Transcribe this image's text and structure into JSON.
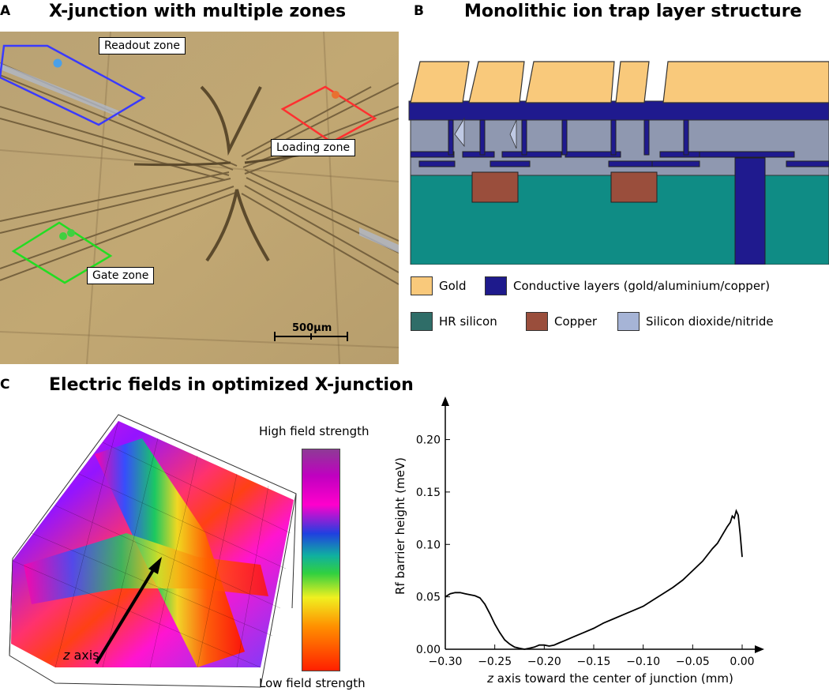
{
  "panelA": {
    "letter": "A",
    "title": "X-junction with multiple zones",
    "zones": {
      "readout": "Readout zone",
      "loading": "Loading zone",
      "gate": "Gate zone"
    },
    "scale_bar": "500µm"
  },
  "panelB": {
    "letter": "B",
    "title": "Monolithic ion trap layer structure",
    "legend": [
      {
        "label": "Gold",
        "color": "#f9c97b"
      },
      {
        "label": "Conductive layers (gold/aluminium/copper)",
        "color": "#1e1a8c"
      },
      {
        "label": "HR silicon",
        "color": "#2f6d68"
      },
      {
        "label": "Copper",
        "color": "#9a4e3c"
      },
      {
        "label": "Silicon dioxide/nitride",
        "color": "#a6b4d6"
      }
    ]
  },
  "panelC": {
    "letter": "C",
    "title": "Electric fields in optimized X-junction",
    "colorbar_high": "High field strength",
    "colorbar_low": "Low field strength",
    "arrow_label_italic": "z",
    "arrow_label_rest": " axis"
  },
  "chart_data": {
    "type": "line",
    "xlabel_italic": "z",
    "xlabel_rest": " axis toward the center of junction (mm)",
    "ylabel": "Rf barrier height (meV)",
    "xlim": [
      -0.3,
      0.0
    ],
    "ylim": [
      0.0,
      0.22
    ],
    "xticks": [
      -0.3,
      -0.25,
      -0.2,
      -0.15,
      -0.1,
      -0.05,
      0.0
    ],
    "xtick_labels": [
      "−0.30",
      "−0.25",
      "−0.20",
      "−0.15",
      "−0.10",
      "−0.05",
      "0.00"
    ],
    "yticks": [
      0.0,
      0.05,
      0.1,
      0.15,
      0.2
    ],
    "ytick_labels": [
      "0.00",
      "0.05",
      "0.10",
      "0.15",
      "0.20"
    ],
    "series": [
      {
        "x": [
          -0.3,
          -0.295,
          -0.29,
          -0.285,
          -0.28,
          -0.275,
          -0.27,
          -0.265,
          -0.26,
          -0.255,
          -0.25,
          -0.245,
          -0.24,
          -0.235,
          -0.23,
          -0.225,
          -0.22,
          -0.215,
          -0.21,
          -0.205,
          -0.2,
          -0.195,
          -0.19,
          -0.185,
          -0.18,
          -0.17,
          -0.16,
          -0.15,
          -0.14,
          -0.13,
          -0.12,
          -0.11,
          -0.1,
          -0.09,
          -0.08,
          -0.07,
          -0.06,
          -0.05,
          -0.04,
          -0.03,
          -0.025,
          -0.02,
          -0.015,
          -0.012,
          -0.01,
          -0.008,
          -0.006,
          -0.004,
          -0.002,
          0.0
        ],
        "values": [
          0.05,
          0.053,
          0.054,
          0.054,
          0.053,
          0.052,
          0.051,
          0.049,
          0.043,
          0.034,
          0.024,
          0.016,
          0.009,
          0.005,
          0.002,
          0.001,
          0.0,
          0.001,
          0.002,
          0.004,
          0.004,
          0.003,
          0.004,
          0.006,
          0.008,
          0.012,
          0.016,
          0.02,
          0.025,
          0.029,
          0.033,
          0.037,
          0.041,
          0.047,
          0.053,
          0.059,
          0.066,
          0.075,
          0.084,
          0.096,
          0.101,
          0.109,
          0.117,
          0.121,
          0.127,
          0.125,
          0.132,
          0.128,
          0.11,
          0.088
        ]
      }
    ]
  }
}
